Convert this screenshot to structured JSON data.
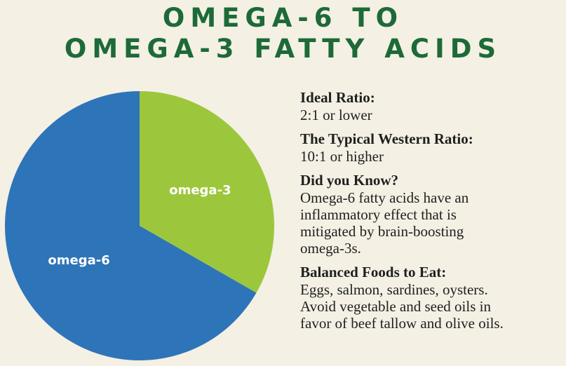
{
  "chart_data": {
    "type": "pie",
    "title": [
      "OMEGA-6 TO",
      "OMEGA-3 FATTY ACIDS"
    ],
    "categories": [
      "omega-3",
      "omega-6"
    ],
    "values": [
      33.3,
      66.7
    ],
    "colors": [
      "#9cc73d",
      "#2e74b8"
    ]
  },
  "notes": [
    {
      "heading": "Ideal Ratio:",
      "lines": [
        "2:1 or lower"
      ]
    },
    {
      "heading": "The Typical Western Ratio:",
      "lines": [
        "10:1 or higher"
      ]
    },
    {
      "heading": "Did you Know?",
      "lines": [
        "Omega-6 fatty acids have an",
        "inflammatory effect that is",
        "mitigated by brain-boosting",
        "omega-3s."
      ]
    },
    {
      "heading": "Balanced Foods to Eat:",
      "lines": [
        "Eggs, salmon, sardines, oysters.",
        "Avoid vegetable and seed oils in",
        "favor of beef tallow and olive oils."
      ]
    }
  ]
}
